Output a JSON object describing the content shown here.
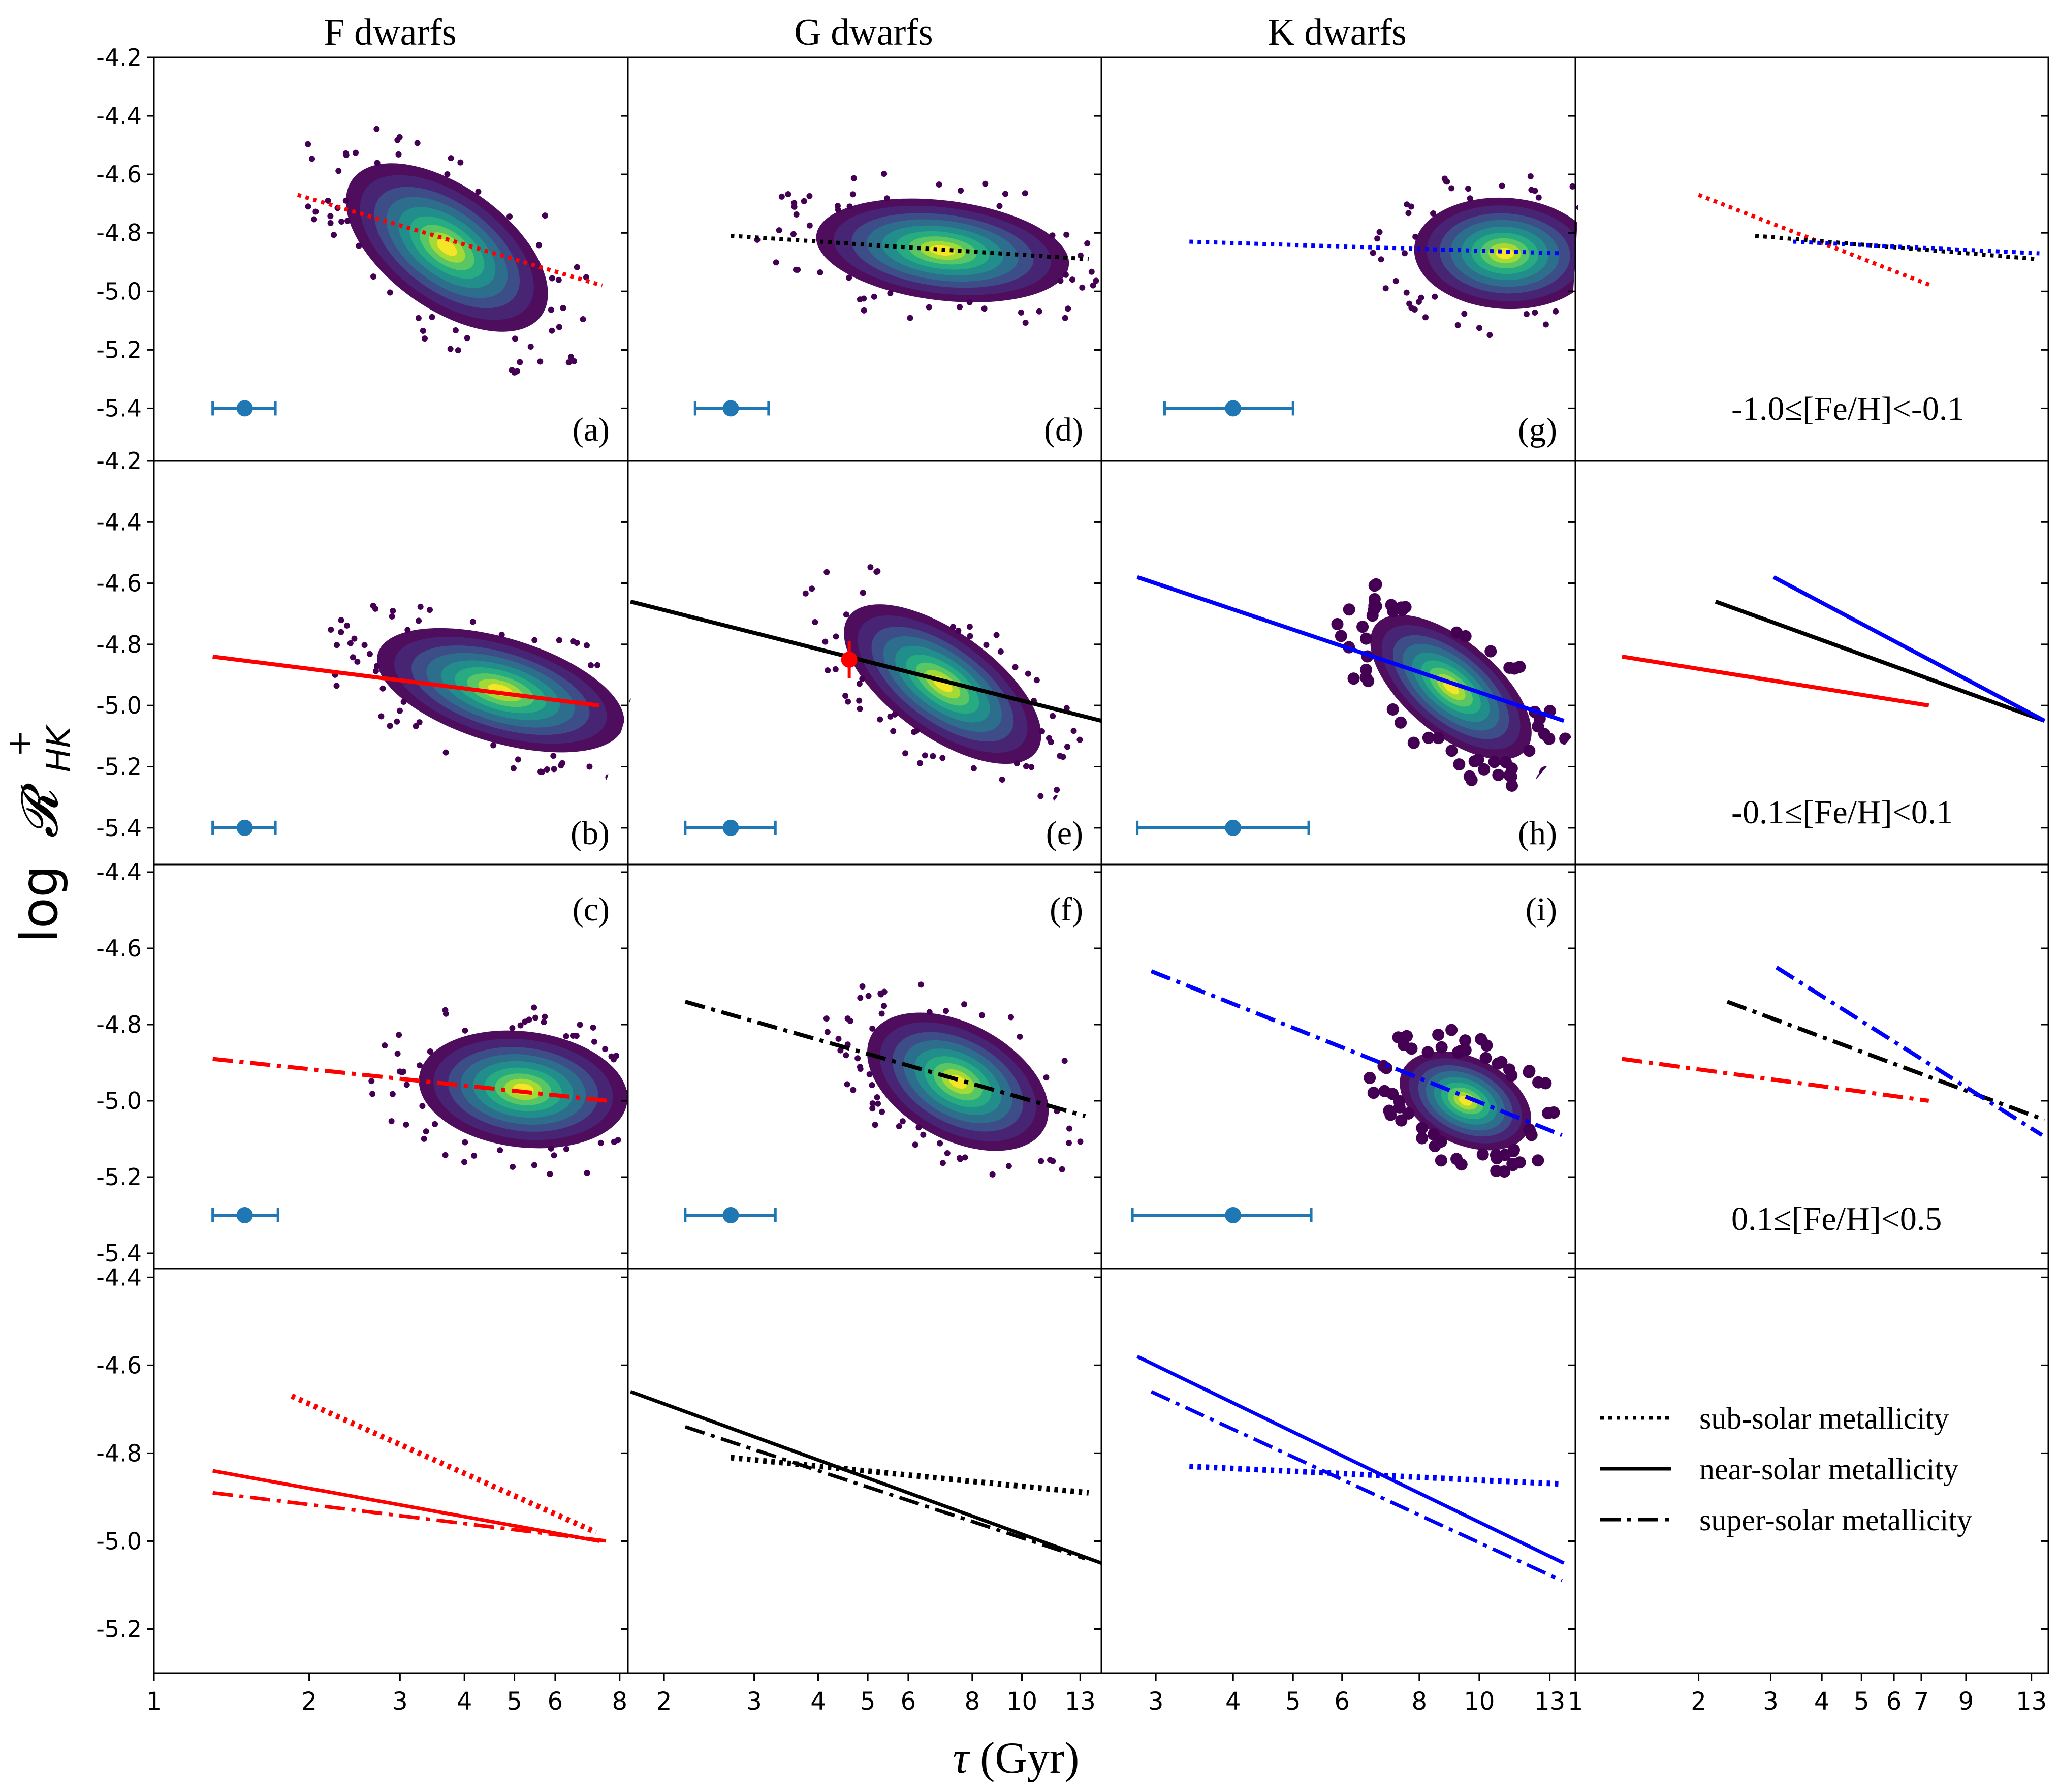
{
  "figure": {
    "column_titles": [
      "F dwarfs",
      "G dwarfs",
      "K dwarfs"
    ],
    "ylabel_main": "log",
    "ylabel_symbol": "𝓡",
    "ylabel_sub": "HK",
    "ylabel_sup": "+",
    "xlabel_tau": "τ",
    "xlabel_unit": "(Gyr)",
    "legend": [
      {
        "label": "sub-solar metallicity",
        "style": "dotted"
      },
      {
        "label": "near-solar metallicity",
        "style": "solid"
      },
      {
        "label": "super-solar metallicity",
        "style": "dashdot"
      }
    ]
  },
  "colors": {
    "F": "#ff0000",
    "G": "#000000",
    "K": "#0000ff",
    "errorbar": "#1f77b4",
    "sun": "#ff0000"
  },
  "chart_data": {
    "type": "scatter",
    "xscale": "log",
    "columns": [
      {
        "key": "F",
        "xlim": [
          1,
          8.3
        ],
        "xticks": [
          1,
          2,
          3,
          4,
          5,
          6,
          8
        ]
      },
      {
        "key": "G",
        "xlim": [
          1.7,
          14.3
        ],
        "xticks": [
          2,
          3,
          4,
          5,
          6,
          8,
          10,
          13
        ]
      },
      {
        "key": "K",
        "xlim": [
          2.45,
          14.3
        ],
        "xticks": [
          3,
          4,
          5,
          6,
          8,
          10,
          13
        ]
      },
      {
        "key": "summary",
        "xlim": [
          1,
          14.3
        ],
        "xticks": [
          1,
          2,
          3,
          4,
          5,
          6,
          7,
          9,
          13
        ]
      }
    ],
    "rows": [
      {
        "key": "sub",
        "ylim": [
          -5.58,
          -4.2
        ],
        "yticks": [
          -5.4,
          -5.2,
          -5.0,
          -4.8,
          -4.6,
          -4.4,
          -4.2
        ],
        "metallicity_label": "-1.0≤[Fe/H]<-0.1"
      },
      {
        "key": "near",
        "ylim": [
          -5.52,
          -4.2
        ],
        "yticks": [
          -5.4,
          -5.2,
          -5.0,
          -4.8,
          -4.6,
          -4.4,
          -4.2
        ],
        "metallicity_label": "-0.1≤[Fe/H]<0.1"
      },
      {
        "key": "super",
        "ylim": [
          -5.44,
          -4.38
        ],
        "yticks": [
          -5.4,
          -5.2,
          -5.0,
          -4.8,
          -4.6,
          -4.4
        ],
        "metallicity_label": "0.1≤[Fe/H]<0.5"
      },
      {
        "key": "summary",
        "ylim": [
          -5.3,
          -4.38
        ],
        "yticks": [
          -5.2,
          -5.0,
          -4.8,
          -4.6,
          -4.4
        ]
      }
    ],
    "panels": [
      {
        "label": "(a)",
        "row": 0,
        "col": 0,
        "fit": {
          "style": "dotted",
          "x": [
            1.9,
            7.4
          ],
          "y": [
            -4.67,
            -4.98
          ]
        },
        "center": [
          3.7,
          -4.85
        ],
        "spread": [
          0.2,
          0.11
        ],
        "tilt": -0.12,
        "errorbar": {
          "x": 1.5,
          "y": -5.4,
          "xerr": [
            1.3,
            1.72
          ]
        }
      },
      {
        "label": "(b)",
        "row": 1,
        "col": 0,
        "fit": {
          "style": "solid",
          "x": [
            1.3,
            7.3
          ],
          "y": [
            -4.84,
            -5.0
          ]
        },
        "center": [
          4.7,
          -4.95
        ],
        "spread": [
          0.22,
          0.09
        ],
        "tilt": -0.05,
        "errorbar": {
          "x": 1.5,
          "y": -5.4,
          "xerr": [
            1.3,
            1.72
          ]
        }
      },
      {
        "label": "(c)",
        "row": 2,
        "col": 0,
        "fit": {
          "style": "dashdot",
          "x": [
            1.3,
            7.6
          ],
          "y": [
            -4.89,
            -5.0
          ]
        },
        "center": [
          5.2,
          -4.97
        ],
        "spread": [
          0.18,
          0.08
        ],
        "tilt": -0.02,
        "errorbar": {
          "x": 1.5,
          "y": -5.3,
          "xerr": [
            1.3,
            1.74
          ]
        }
      },
      {
        "label": "(d)",
        "row": 0,
        "col": 1,
        "fit": {
          "style": "dotted",
          "x": [
            2.7,
            13.5
          ],
          "y": [
            -4.81,
            -4.89
          ]
        },
        "center": [
          7.0,
          -4.86
        ],
        "spread": [
          0.22,
          0.09
        ],
        "tilt": -0.02,
        "errorbar": {
          "x": 2.7,
          "y": -5.4,
          "xerr": [
            2.3,
            3.2
          ]
        }
      },
      {
        "label": "(e)",
        "row": 1,
        "col": 1,
        "fit": {
          "style": "solid",
          "x": [
            1.72,
            14.3
          ],
          "y": [
            -4.66,
            -5.05
          ]
        },
        "center": [
          7.0,
          -4.93
        ],
        "spread": [
          0.2,
          0.09
        ],
        "tilt": -0.12,
        "errorbar": {
          "x": 2.7,
          "y": -5.4,
          "xerr": [
            2.2,
            3.3
          ]
        },
        "sun": {
          "x": 4.6,
          "y": -4.85,
          "yerr": 0.06
        }
      },
      {
        "label": "(f)",
        "row": 2,
        "col": 1,
        "fit": {
          "style": "dashdot",
          "x": [
            2.2,
            13.3
          ],
          "y": [
            -4.74,
            -5.04
          ]
        },
        "center": [
          7.5,
          -4.95
        ],
        "spread": [
          0.17,
          0.08
        ],
        "tilt": -0.09,
        "errorbar": {
          "x": 2.7,
          "y": -5.3,
          "xerr": [
            2.2,
            3.3
          ]
        }
      },
      {
        "label": "(g)",
        "row": 0,
        "col": 2,
        "fit": {
          "style": "dotted",
          "x": [
            3.4,
            13.6
          ],
          "y": [
            -4.83,
            -4.87
          ]
        },
        "center": [
          11.0,
          -4.87
        ],
        "spread": [
          0.13,
          0.1
        ],
        "tilt": -0.01,
        "errorbar": {
          "x": 4.0,
          "y": -5.4,
          "xerr": [
            3.1,
            5.0
          ]
        }
      },
      {
        "label": "(h)",
        "row": 1,
        "col": 2,
        "fit": {
          "style": "solid",
          "x": [
            2.8,
            13.7
          ],
          "y": [
            -4.58,
            -5.05
          ]
        },
        "center": [
          9.0,
          -4.94
        ],
        "spread": [
          0.14,
          0.08
        ],
        "tilt": -0.14,
        "errorbar": {
          "x": 4.0,
          "y": -5.4,
          "xerr": [
            2.8,
            5.3
          ]
        }
      },
      {
        "label": "(i)",
        "row": 2,
        "col": 2,
        "fit": {
          "style": "dashdot",
          "x": [
            2.95,
            13.6
          ],
          "y": [
            -4.66,
            -5.09
          ]
        },
        "center": [
          9.5,
          -5.0
        ],
        "spread": [
          0.1,
          0.06
        ],
        "tilt": -0.08,
        "errorbar": {
          "x": 4.0,
          "y": -5.3,
          "xerr": [
            2.75,
            5.35
          ]
        }
      }
    ],
    "summary_columns": [
      {
        "col": 0,
        "lines": [
          {
            "color": "F",
            "style": "dotted",
            "x": [
              1.85,
              7.2
            ],
            "y": [
              -4.67,
              -4.98
            ]
          },
          {
            "color": "F",
            "style": "solid",
            "x": [
              1.3,
              7.3
            ],
            "y": [
              -4.84,
              -5.0
            ]
          },
          {
            "color": "F",
            "style": "dashdot",
            "x": [
              1.3,
              7.6
            ],
            "y": [
              -4.89,
              -5.0
            ]
          }
        ]
      },
      {
        "col": 1,
        "lines": [
          {
            "color": "G",
            "style": "dotted",
            "x": [
              2.7,
              13.5
            ],
            "y": [
              -4.81,
              -4.89
            ]
          },
          {
            "color": "G",
            "style": "solid",
            "x": [
              1.72,
              14.3
            ],
            "y": [
              -4.66,
              -5.05
            ]
          },
          {
            "color": "G",
            "style": "dashdot",
            "x": [
              2.2,
              13.3
            ],
            "y": [
              -4.74,
              -5.04
            ]
          }
        ]
      },
      {
        "col": 2,
        "lines": [
          {
            "color": "K",
            "style": "dotted",
            "x": [
              3.4,
              13.6
            ],
            "y": [
              -4.83,
              -4.87
            ]
          },
          {
            "color": "K",
            "style": "solid",
            "x": [
              2.8,
              13.7
            ],
            "y": [
              -4.58,
              -5.05
            ]
          },
          {
            "color": "K",
            "style": "dashdot",
            "x": [
              2.95,
              13.6
            ],
            "y": [
              -4.66,
              -5.09
            ]
          }
        ]
      }
    ],
    "summary_rows": [
      {
        "row": 0,
        "lines": [
          {
            "color": "F",
            "style": "dotted",
            "x": [
              2.0,
              7.4
            ],
            "y": [
              -4.67,
              -4.98
            ]
          },
          {
            "color": "G",
            "style": "dotted",
            "x": [
              2.75,
              13.5
            ],
            "y": [
              -4.81,
              -4.89
            ]
          },
          {
            "color": "K",
            "style": "dotted",
            "x": [
              3.4,
              13.6
            ],
            "y": [
              -4.83,
              -4.87
            ]
          }
        ]
      },
      {
        "row": 1,
        "lines": [
          {
            "color": "F",
            "style": "solid",
            "x": [
              1.3,
              7.3
            ],
            "y": [
              -4.84,
              -5.0
            ]
          },
          {
            "color": "G",
            "style": "solid",
            "x": [
              2.2,
              14.0
            ],
            "y": [
              -4.66,
              -5.05
            ]
          },
          {
            "color": "K",
            "style": "solid",
            "x": [
              3.05,
              14.0
            ],
            "y": [
              -4.58,
              -5.05
            ]
          }
        ]
      },
      {
        "row": 2,
        "lines": [
          {
            "color": "F",
            "style": "dashdot",
            "x": [
              1.3,
              7.3
            ],
            "y": [
              -4.89,
              -5.0
            ]
          },
          {
            "color": "G",
            "style": "dashdot",
            "x": [
              2.35,
              14.0
            ],
            "y": [
              -4.74,
              -5.05
            ]
          },
          {
            "color": "K",
            "style": "dashdot",
            "x": [
              3.1,
              13.8
            ],
            "y": [
              -4.65,
              -5.09
            ]
          }
        ]
      }
    ]
  }
}
